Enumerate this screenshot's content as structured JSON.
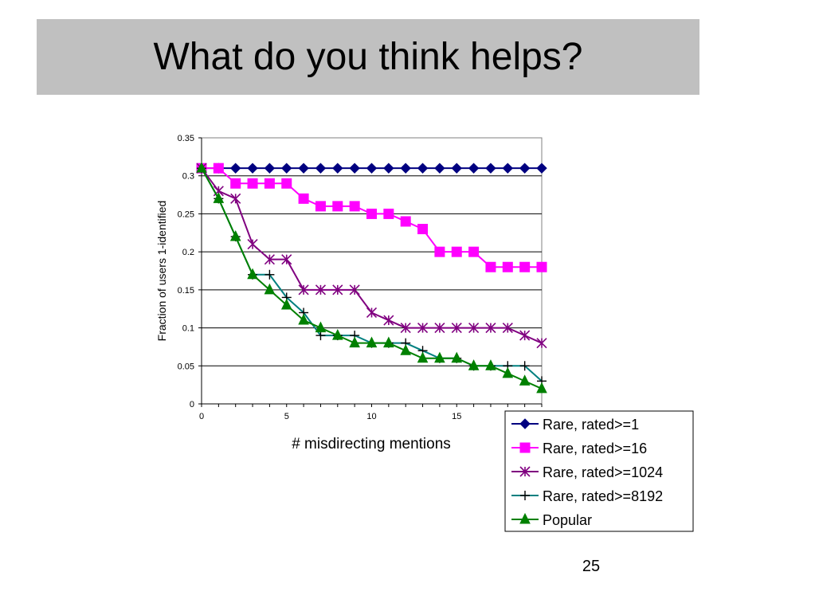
{
  "slide": {
    "title": "What do you think helps?",
    "page_number": "25"
  },
  "chart_data": {
    "type": "line",
    "xlabel": "# misdirecting mentions",
    "ylabel": "Fraction of users 1-identified",
    "xlim": [
      0,
      20
    ],
    "ylim": [
      0,
      0.35
    ],
    "xticks": [
      0,
      5,
      10,
      15
    ],
    "xtick_labels": [
      "0",
      "5",
      "10",
      "15"
    ],
    "yticks": [
      0,
      0.05,
      0.1,
      0.15,
      0.2,
      0.25,
      0.3,
      0.35
    ],
    "ytick_labels": [
      "0",
      "0.05",
      "0.1",
      "0.15",
      "0.2",
      "0.25",
      "0.3",
      "0.35"
    ],
    "grid": "horizontal",
    "legend_position": "bottom-right",
    "x": [
      0,
      1,
      2,
      3,
      4,
      5,
      6,
      7,
      8,
      9,
      10,
      11,
      12,
      13,
      14,
      15,
      16,
      17,
      18,
      19,
      20
    ],
    "series": [
      {
        "name": "Rare, rated>=1",
        "color": "#000080",
        "marker": "diamond",
        "values": [
          0.31,
          0.31,
          0.31,
          0.31,
          0.31,
          0.31,
          0.31,
          0.31,
          0.31,
          0.31,
          0.31,
          0.31,
          0.31,
          0.31,
          0.31,
          0.31,
          0.31,
          0.31,
          0.31,
          0.31,
          0.31
        ]
      },
      {
        "name": "Rare, rated>=16",
        "color": "#ff00ff",
        "marker": "square",
        "values": [
          0.31,
          0.31,
          0.29,
          0.29,
          0.29,
          0.29,
          0.27,
          0.26,
          0.26,
          0.26,
          0.25,
          0.25,
          0.24,
          0.23,
          0.2,
          0.2,
          0.2,
          0.18,
          0.18,
          0.18,
          0.18
        ]
      },
      {
        "name": "Rare, rated>=1024",
        "color": "#800080",
        "marker": "star",
        "values": [
          0.31,
          0.28,
          0.27,
          0.21,
          0.19,
          0.19,
          0.15,
          0.15,
          0.15,
          0.15,
          0.12,
          0.11,
          0.1,
          0.1,
          0.1,
          0.1,
          0.1,
          0.1,
          0.1,
          0.09,
          0.08
        ]
      },
      {
        "name": "Rare, rated>=8192",
        "color": "#008080",
        "marker": "plus",
        "values": [
          0.31,
          0.27,
          0.22,
          0.17,
          0.17,
          0.14,
          0.12,
          0.09,
          0.09,
          0.09,
          0.08,
          0.08,
          0.08,
          0.07,
          0.06,
          0.06,
          0.05,
          0.05,
          0.05,
          0.05,
          0.03
        ]
      },
      {
        "name": "Popular",
        "color": "#008000",
        "marker": "triangle",
        "values": [
          0.31,
          0.27,
          0.22,
          0.17,
          0.15,
          0.13,
          0.11,
          0.1,
          0.09,
          0.08,
          0.08,
          0.08,
          0.07,
          0.06,
          0.06,
          0.06,
          0.05,
          0.05,
          0.04,
          0.03,
          0.02
        ]
      }
    ]
  }
}
